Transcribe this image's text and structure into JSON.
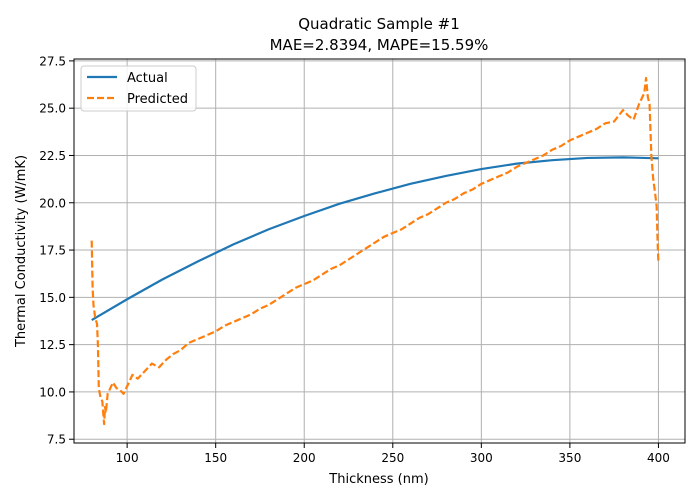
{
  "chart_data": {
    "type": "line",
    "title": "Quadratic Sample #1",
    "subtitle": "MAE=2.8394, MAPE=15.59%",
    "xlabel": "Thickness (nm)",
    "ylabel": "Thermal Conductivity (W/mK)",
    "xlim": [
      70,
      415
    ],
    "ylim": [
      7.3,
      27.6
    ],
    "xticks": [
      100,
      150,
      200,
      250,
      300,
      350,
      400
    ],
    "xtick_labels": [
      "100",
      "150",
      "200",
      "250",
      "300",
      "350",
      "400"
    ],
    "yticks": [
      7.5,
      10.0,
      12.5,
      15.0,
      17.5,
      20.0,
      22.5,
      25.0,
      27.5
    ],
    "ytick_labels": [
      "7.5",
      "10.0",
      "12.5",
      "15.0",
      "17.5",
      "20.0",
      "22.5",
      "25.0",
      "27.5"
    ],
    "grid": true,
    "legend_position": "top-left",
    "series": [
      {
        "name": "Actual",
        "color": "#1f77b4",
        "style": "solid",
        "x": [
          80,
          100,
          120,
          140,
          160,
          180,
          200,
          220,
          240,
          260,
          280,
          300,
          320,
          340,
          360,
          380,
          400
        ],
        "y": [
          13.8,
          14.9,
          15.95,
          16.9,
          17.8,
          18.6,
          19.3,
          19.95,
          20.5,
          21.0,
          21.42,
          21.78,
          22.07,
          22.25,
          22.37,
          22.4,
          22.35
        ]
      },
      {
        "name": "Predicted",
        "color": "#ff7f0e",
        "style": "dashed",
        "x": [
          80,
          80.5,
          81,
          82,
          83,
          83.5,
          84,
          85,
          86,
          87,
          87.5,
          88,
          89,
          90,
          92,
          94,
          96,
          98,
          100,
          103,
          106,
          110,
          114,
          118,
          122,
          126,
          130,
          135,
          140,
          145,
          150,
          155,
          160,
          165,
          170,
          175,
          180,
          185,
          190,
          195,
          200,
          205,
          210,
          215,
          220,
          225,
          230,
          235,
          240,
          245,
          250,
          255,
          260,
          265,
          270,
          275,
          280,
          285,
          290,
          295,
          300,
          305,
          310,
          315,
          320,
          325,
          330,
          335,
          340,
          345,
          350,
          355,
          360,
          365,
          370,
          375,
          380,
          383,
          386,
          389,
          392,
          393,
          394,
          395,
          396,
          397,
          398,
          399,
          399.5,
          400
        ],
        "y": [
          18.0,
          15.5,
          14.6,
          13.9,
          13.6,
          12.5,
          10.2,
          9.7,
          9.5,
          8.3,
          9.2,
          8.9,
          9.9,
          10.1,
          10.5,
          10.2,
          10.1,
          9.9,
          10.3,
          10.9,
          10.7,
          11.1,
          11.5,
          11.3,
          11.7,
          12.0,
          12.2,
          12.6,
          12.8,
          13.0,
          13.2,
          13.5,
          13.7,
          13.9,
          14.1,
          14.4,
          14.6,
          14.9,
          15.2,
          15.5,
          15.7,
          15.9,
          16.2,
          16.5,
          16.7,
          17.0,
          17.3,
          17.6,
          17.9,
          18.2,
          18.4,
          18.6,
          18.9,
          19.2,
          19.4,
          19.7,
          20.0,
          20.2,
          20.5,
          20.7,
          21.0,
          21.2,
          21.4,
          21.6,
          21.9,
          22.1,
          22.3,
          22.5,
          22.8,
          23.0,
          23.3,
          23.5,
          23.7,
          23.9,
          24.2,
          24.3,
          24.9,
          24.6,
          24.4,
          25.2,
          25.8,
          26.6,
          25.6,
          25.2,
          22.5,
          21.3,
          20.6,
          19.8,
          18.0,
          16.8
        ]
      }
    ]
  }
}
